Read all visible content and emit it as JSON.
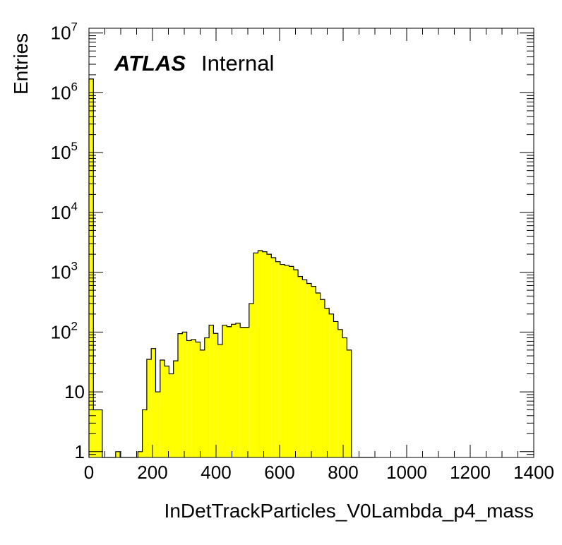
{
  "chart_data": {
    "type": "bar",
    "histogram": true,
    "xlabel": "InDetTrackParticles_V0Lambda_p4_mass",
    "ylabel": "Entries",
    "xlim": [
      0,
      1400
    ],
    "ylim": [
      0.8,
      12000000
    ],
    "y_scale": "log",
    "x_ticks": [
      "0",
      "200",
      "400",
      "600",
      "800",
      "1000",
      "1200",
      "1400"
    ],
    "y_ticks": [
      {
        "value": 1,
        "base": "1",
        "exp": ""
      },
      {
        "value": 10,
        "base": "10",
        "exp": ""
      },
      {
        "value": 100,
        "base": "10",
        "exp": "2"
      },
      {
        "value": 1000,
        "base": "10",
        "exp": "3"
      },
      {
        "value": 10000,
        "base": "10",
        "exp": "4"
      },
      {
        "value": 100000,
        "base": "10",
        "exp": "5"
      },
      {
        "value": 1000000,
        "base": "10",
        "exp": "6"
      },
      {
        "value": 10000000,
        "base": "10",
        "exp": "7"
      }
    ],
    "fill_color": "#ffff00",
    "line_color": "#000000",
    "bin_width": 14,
    "bin_start": 0,
    "values": [
      1700000,
      5,
      5,
      0,
      0,
      0,
      1,
      0,
      0,
      0,
      0,
      1,
      5,
      35,
      53,
      10,
      34,
      27,
      20,
      33,
      94,
      100,
      72,
      75,
      68,
      50,
      80,
      130,
      95,
      62,
      130,
      123,
      135,
      140,
      120,
      120,
      300,
      2100,
      2300,
      2200,
      2000,
      1750,
      1500,
      1350,
      1300,
      1250,
      1100,
      850,
      750,
      650,
      580,
      450,
      350,
      250,
      200,
      150,
      110,
      80,
      50,
      0,
      0,
      0,
      0,
      0
    ],
    "annotation_bold": "ATLAS",
    "annotation_plain": "Internal",
    "grid": false,
    "legend": "none"
  }
}
